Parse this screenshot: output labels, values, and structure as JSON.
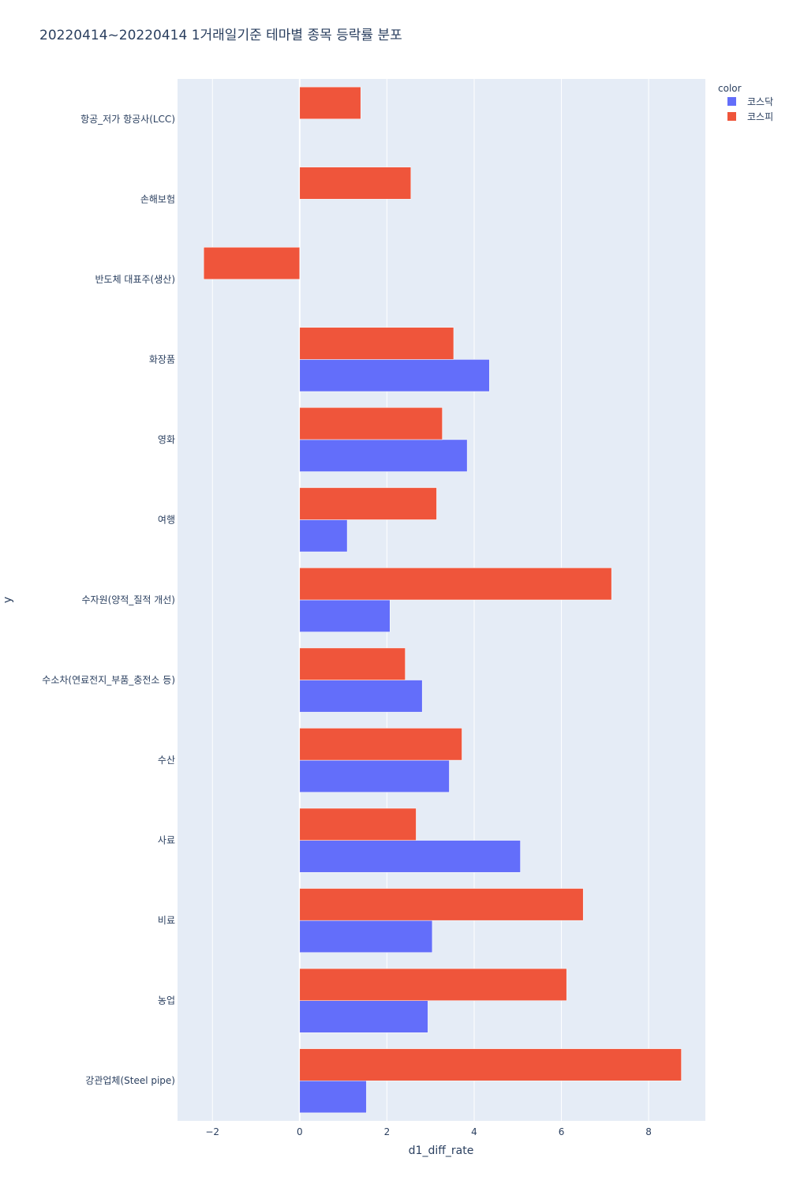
{
  "chart_data": {
    "type": "bar",
    "orientation": "horizontal",
    "barmode": "group",
    "title": "20220414~20220414 1거래일기준 테마별 종목 등락률 분포",
    "xlabel": "d1_diff_rate",
    "ylabel": "y",
    "xlim": [
      -2.8,
      9.3
    ],
    "xticks": [
      -2,
      0,
      2,
      4,
      6,
      8
    ],
    "xtick_labels": [
      "−2",
      "0",
      "2",
      "4",
      "6",
      "8"
    ],
    "grid": true,
    "legend_title": "color",
    "legend_position": "top-right",
    "categories": [
      "항공_저가 항공사(LCC)",
      "손해보험",
      "반도체 대표주(생산)",
      "화장품",
      "영화",
      "여행",
      "수자원(양적_질적 개선)",
      "수소차(연료전지_부품_충전소 등)",
      "수산",
      "사료",
      "비료",
      "농업",
      "강관업체(Steel pipe)"
    ],
    "series": [
      {
        "name": "코스닥",
        "color": "#636efa",
        "values": [
          null,
          null,
          null,
          4.35,
          3.84,
          1.09,
          2.07,
          2.81,
          3.43,
          5.06,
          3.04,
          2.94,
          1.53
        ]
      },
      {
        "name": "코스피",
        "color": "#ef553b",
        "values": [
          1.4,
          2.55,
          -2.2,
          3.53,
          3.27,
          3.14,
          7.15,
          2.42,
          3.72,
          2.67,
          6.5,
          6.12,
          8.75
        ]
      }
    ]
  }
}
